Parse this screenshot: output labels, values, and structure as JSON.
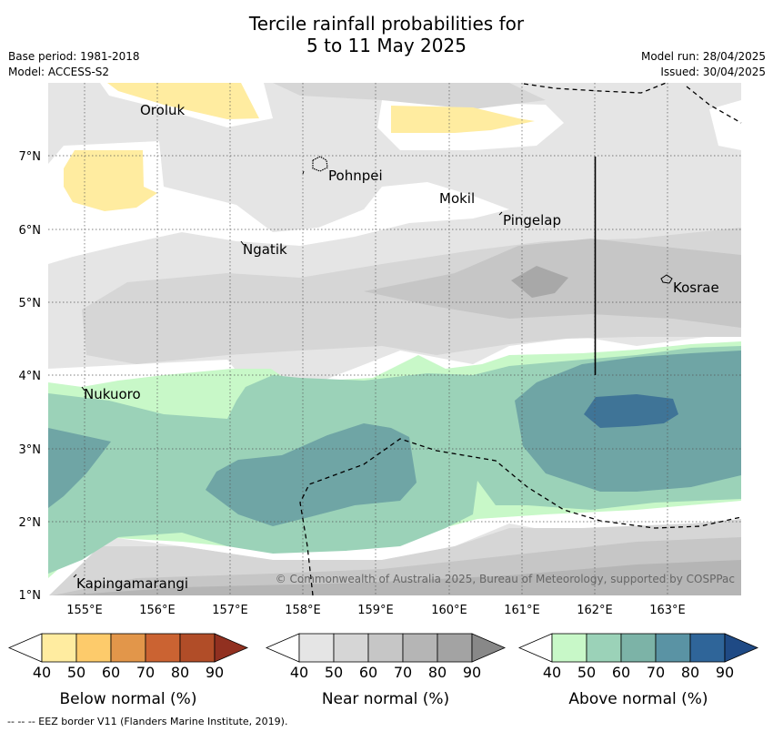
{
  "header": {
    "title_line1": "Tercile rainfall probabilities for",
    "title_line2": "5 to 11 May 2025",
    "base_period": "Base period: 1981-2018",
    "model": "Model: ACCESS-S2",
    "model_run": "Model run: 28/04/2025",
    "issued": "Issued: 30/04/2025"
  },
  "map": {
    "lat_labels": [
      "7°N",
      "6°N",
      "5°N",
      "4°N",
      "3°N",
      "2°N",
      "1°N"
    ],
    "lon_labels": [
      "155°E",
      "156°E",
      "157°E",
      "158°E",
      "159°E",
      "160°E",
      "161°E",
      "162°E",
      "163°E"
    ],
    "places": [
      "Oroluk",
      "Pohnpei",
      "Mokil",
      "Pingelap",
      "Ngatik",
      "Kosrae",
      "Nukuoro",
      "Kapingamarangi"
    ],
    "copyright": "© Commonwealth of Australia 2025, Bureau of Meteorology, supported by COSPPac"
  },
  "legends": [
    {
      "label": "Below normal (%)",
      "ticks": [
        "40",
        "50",
        "60",
        "70",
        "80",
        "90"
      ],
      "colors": [
        "#ffffff",
        "#ffeca0",
        "#fdcb6b",
        "#e2964a",
        "#cb6332",
        "#b14d28",
        "#913020"
      ]
    },
    {
      "label": "Near normal (%)",
      "ticks": [
        "40",
        "50",
        "60",
        "70",
        "80",
        "90"
      ],
      "colors": [
        "#ffffff",
        "#e5e5e5",
        "#d6d6d6",
        "#c6c6c6",
        "#b5b5b5",
        "#a3a3a3",
        "#888888"
      ]
    },
    {
      "label": "Above normal (%)",
      "ticks": [
        "40",
        "50",
        "60",
        "70",
        "80",
        "90"
      ],
      "colors": [
        "#ffffff",
        "#c8f8c8",
        "#9bd2b8",
        "#7cb3a7",
        "#5a93a4",
        "#2f6599",
        "#1f4a85"
      ]
    }
  ],
  "footer": "--  --  -- EEZ border V11 (Flanders Marine Institute, 2019)."
}
